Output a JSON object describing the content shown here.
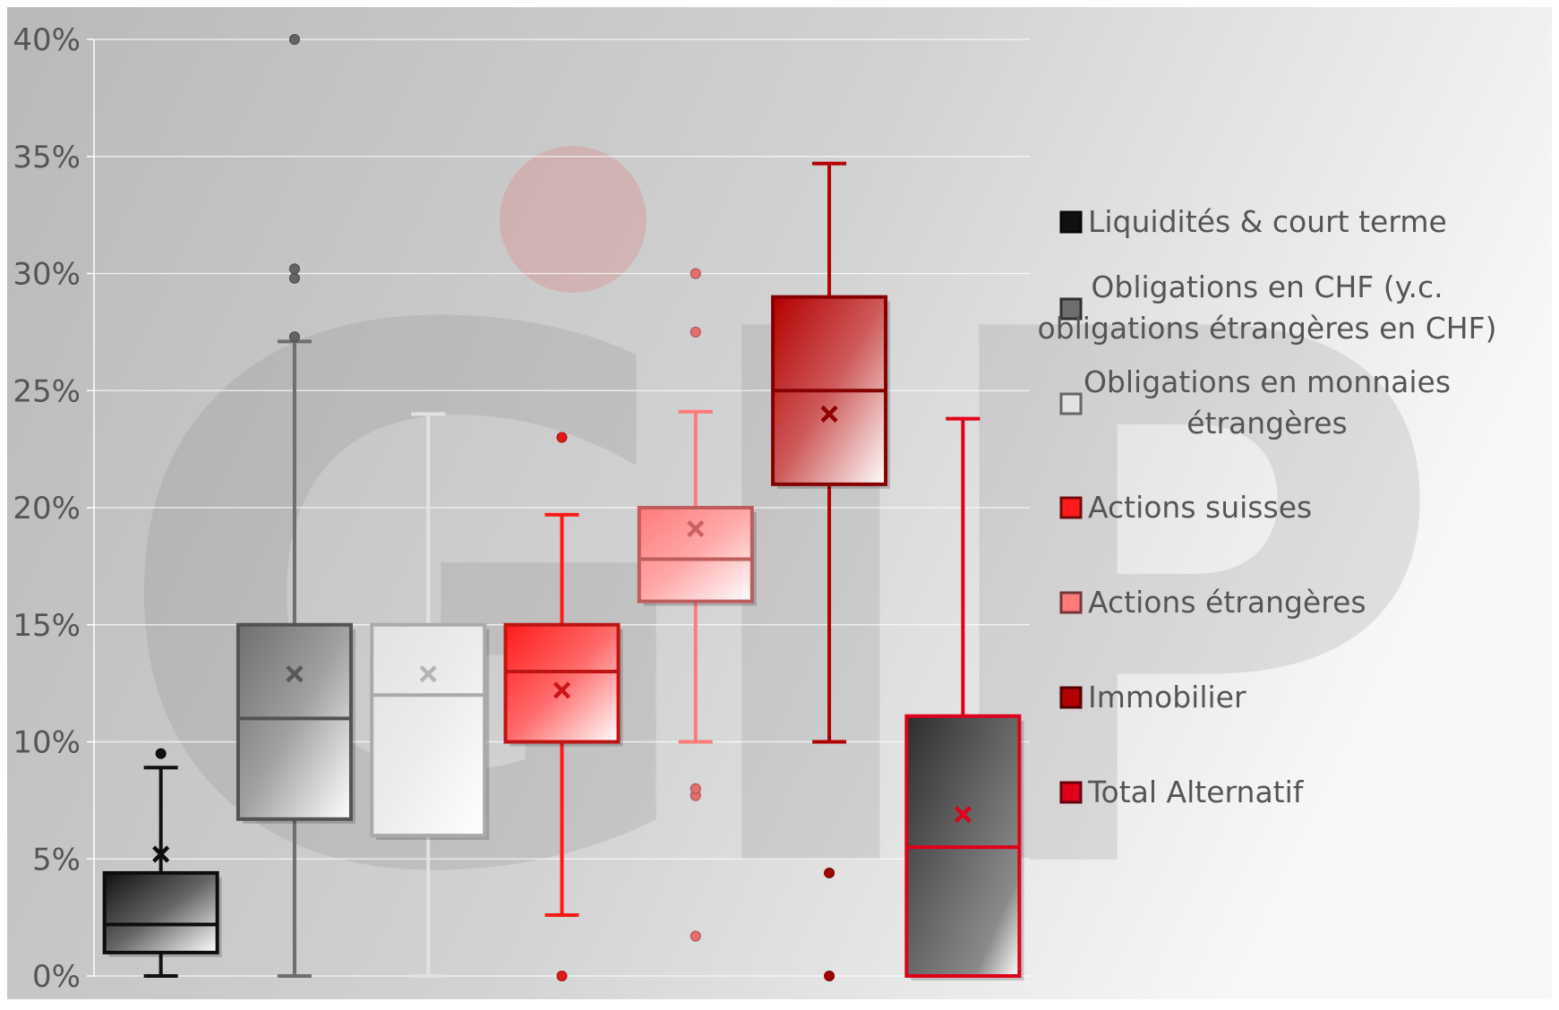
{
  "chart_data": {
    "type": "box",
    "ylim": [
      0,
      0.4
    ],
    "y_ticks": [
      "0%",
      "5%",
      "10%",
      "15%",
      "20%",
      "25%",
      "30%",
      "35%",
      "40%"
    ],
    "grid": true,
    "legend_position": "right",
    "watermark_text": "GIP",
    "series": [
      {
        "name": "Liquidités & court terme",
        "color": "#111111",
        "min": 0.0,
        "q1": 0.01,
        "median": 0.022,
        "q3": 0.044,
        "max": 0.089,
        "mean": 0.052,
        "outliers": [
          0.095
        ]
      },
      {
        "name": "Obligations en CHF (y.c. obligations étrangères en CHF)",
        "color": "#6e6e6e",
        "min": 0.0,
        "q1": 0.067,
        "median": 0.11,
        "q3": 0.15,
        "max": 0.271,
        "mean": 0.129,
        "outliers": [
          0.273,
          0.298,
          0.302,
          0.4
        ]
      },
      {
        "name": "Obligations en monnaies étrangères",
        "color": "#e2e2e2",
        "min": 0.0,
        "q1": 0.06,
        "median": 0.12,
        "q3": 0.15,
        "max": 0.24,
        "mean": 0.129,
        "outliers": []
      },
      {
        "name": "Actions suisses",
        "color": "#ff1a1a",
        "min": 0.026,
        "q1": 0.1,
        "median": 0.13,
        "q3": 0.15,
        "max": 0.197,
        "mean": 0.122,
        "outliers": [
          0.0,
          0.23
        ]
      },
      {
        "name": "Actions étrangères",
        "color": "#ff7a7a",
        "min": 0.1,
        "q1": 0.16,
        "median": 0.178,
        "q3": 0.2,
        "max": 0.241,
        "mean": 0.191,
        "outliers": [
          0.017,
          0.077,
          0.08,
          0.275,
          0.3
        ]
      },
      {
        "name": "Immobilier",
        "color": "#b30000",
        "min": 0.1,
        "q1": 0.21,
        "median": 0.25,
        "q3": 0.29,
        "max": 0.347,
        "mean": 0.24,
        "outliers": [
          0.0,
          0.044
        ]
      },
      {
        "name": "Total Alternatif",
        "color": "#e0001a",
        "min": 0.0,
        "q1": 0.0,
        "median": 0.055,
        "q3": 0.111,
        "max": 0.238,
        "mean": 0.069,
        "outliers": []
      }
    ],
    "legend_labels": [
      [
        "Liquidités & court terme"
      ],
      [
        "Obligations en CHF (y.c.",
        "obligations étrangères en CHF)"
      ],
      [
        "Obligations en monnaies",
        "étrangères"
      ],
      [
        "Actions suisses"
      ],
      [
        "Actions étrangères"
      ],
      [
        "Immobilier"
      ],
      [
        "Total Alternatif"
      ]
    ]
  }
}
